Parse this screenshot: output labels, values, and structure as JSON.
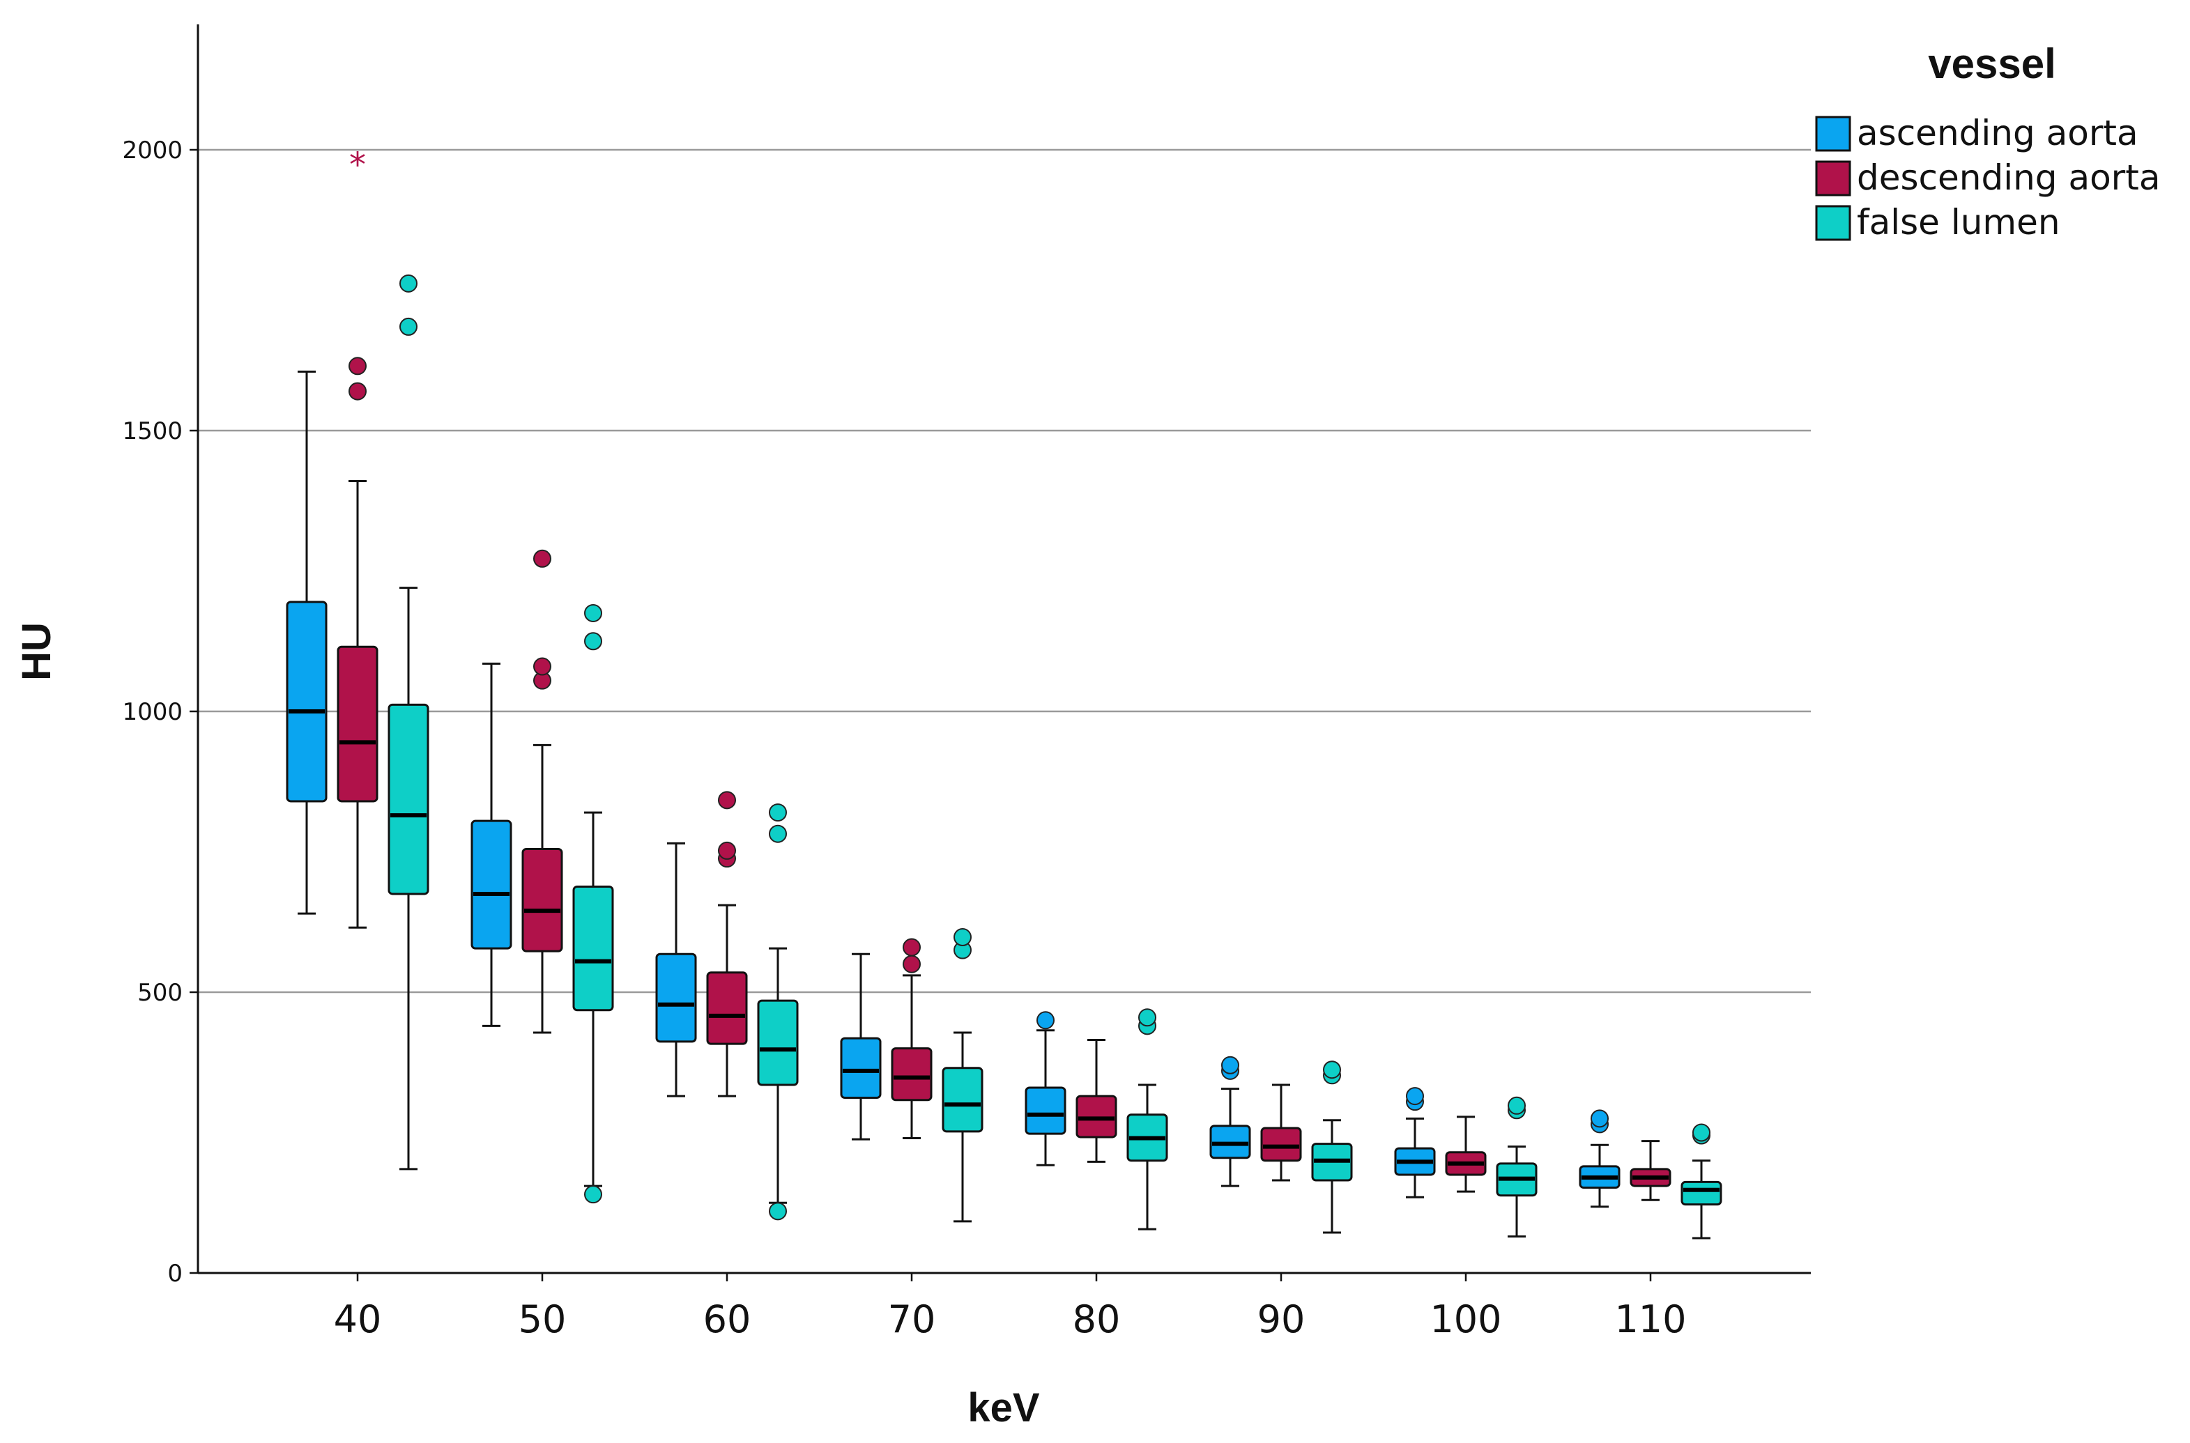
{
  "chart_data": {
    "type": "boxplot",
    "title": "",
    "xlabel": "keV",
    "ylabel": "HU",
    "ylim": [
      0,
      2200
    ],
    "yticks": [
      0,
      500,
      1000,
      1500,
      2000
    ],
    "grid": "horizontal",
    "legend_title": "vessel",
    "legend_position": "top-right",
    "categories": [
      "40",
      "50",
      "60",
      "70",
      "80",
      "90",
      "100",
      "110"
    ],
    "series": [
      {
        "name": "ascending aorta",
        "color": "#0AA5F0",
        "boxes": [
          {
            "whisker_low": 640,
            "q1": 840,
            "median": 1000,
            "q3": 1195,
            "whisker_high": 1605,
            "outliers": [],
            "extremes": []
          },
          {
            "whisker_low": 440,
            "q1": 578,
            "median": 675,
            "q3": 805,
            "whisker_high": 1085,
            "outliers": [],
            "extremes": []
          },
          {
            "whisker_low": 315,
            "q1": 412,
            "median": 478,
            "q3": 568,
            "whisker_high": 765,
            "outliers": [],
            "extremes": []
          },
          {
            "whisker_low": 238,
            "q1": 312,
            "median": 360,
            "q3": 418,
            "whisker_high": 568,
            "outliers": [],
            "extremes": []
          },
          {
            "whisker_low": 192,
            "q1": 248,
            "median": 282,
            "q3": 330,
            "whisker_high": 432,
            "outliers": [
              450
            ],
            "extremes": []
          },
          {
            "whisker_low": 155,
            "q1": 205,
            "median": 230,
            "q3": 262,
            "whisker_high": 328,
            "outliers": [
              360,
              370
            ],
            "extremes": []
          },
          {
            "whisker_low": 135,
            "q1": 175,
            "median": 198,
            "q3": 222,
            "whisker_high": 275,
            "outliers": [
              305,
              315
            ],
            "extremes": []
          },
          {
            "whisker_low": 118,
            "q1": 152,
            "median": 170,
            "q3": 190,
            "whisker_high": 228,
            "outliers": [
              265,
              275
            ],
            "extremes": []
          }
        ]
      },
      {
        "name": "descending aorta",
        "color": "#B0124A",
        "boxes": [
          {
            "whisker_low": 615,
            "q1": 840,
            "median": 945,
            "q3": 1115,
            "whisker_high": 1410,
            "outliers": [
              1570,
              1615
            ],
            "extremes": [
              1980
            ]
          },
          {
            "whisker_low": 428,
            "q1": 573,
            "median": 645,
            "q3": 755,
            "whisker_high": 940,
            "outliers": [
              1055,
              1080,
              1272
            ],
            "extremes": []
          },
          {
            "whisker_low": 315,
            "q1": 408,
            "median": 458,
            "q3": 535,
            "whisker_high": 655,
            "outliers": [
              738,
              752,
              842
            ],
            "extremes": []
          },
          {
            "whisker_low": 240,
            "q1": 308,
            "median": 348,
            "q3": 400,
            "whisker_high": 530,
            "outliers": [
              550,
              580
            ],
            "extremes": []
          },
          {
            "whisker_low": 198,
            "q1": 242,
            "median": 275,
            "q3": 315,
            "whisker_high": 415,
            "outliers": [],
            "extremes": []
          },
          {
            "whisker_low": 165,
            "q1": 200,
            "median": 225,
            "q3": 258,
            "whisker_high": 335,
            "outliers": [],
            "extremes": []
          },
          {
            "whisker_low": 145,
            "q1": 175,
            "median": 195,
            "q3": 215,
            "whisker_high": 278,
            "outliers": [],
            "extremes": []
          },
          {
            "whisker_low": 130,
            "q1": 155,
            "median": 170,
            "q3": 185,
            "whisker_high": 235,
            "outliers": [],
            "extremes": []
          }
        ]
      },
      {
        "name": "false lumen",
        "color": "#0ECFC7",
        "boxes": [
          {
            "whisker_low": 185,
            "q1": 675,
            "median": 815,
            "q3": 1012,
            "whisker_high": 1220,
            "outliers": [
              1685,
              1762
            ],
            "extremes": []
          },
          {
            "whisker_low": 155,
            "q1": 468,
            "median": 555,
            "q3": 688,
            "whisker_high": 820,
            "outliers": [
              140,
              1125,
              1175
            ],
            "extremes": []
          },
          {
            "whisker_low": 125,
            "q1": 335,
            "median": 398,
            "q3": 485,
            "whisker_high": 578,
            "outliers": [
              110,
              782,
              820
            ],
            "extremes": []
          },
          {
            "whisker_low": 92,
            "q1": 252,
            "median": 300,
            "q3": 365,
            "whisker_high": 428,
            "outliers": [
              575,
              598
            ],
            "extremes": []
          },
          {
            "whisker_low": 78,
            "q1": 200,
            "median": 240,
            "q3": 282,
            "whisker_high": 335,
            "outliers": [
              440,
              455
            ],
            "extremes": []
          },
          {
            "whisker_low": 72,
            "q1": 165,
            "median": 200,
            "q3": 230,
            "whisker_high": 272,
            "outliers": [
              352,
              362
            ],
            "extremes": []
          },
          {
            "whisker_low": 65,
            "q1": 138,
            "median": 168,
            "q3": 195,
            "whisker_high": 225,
            "outliers": [
              290,
              298
            ],
            "extremes": []
          },
          {
            "whisker_low": 62,
            "q1": 122,
            "median": 148,
            "q3": 162,
            "whisker_high": 200,
            "outliers": [
              245,
              250
            ],
            "extremes": []
          }
        ]
      }
    ]
  }
}
